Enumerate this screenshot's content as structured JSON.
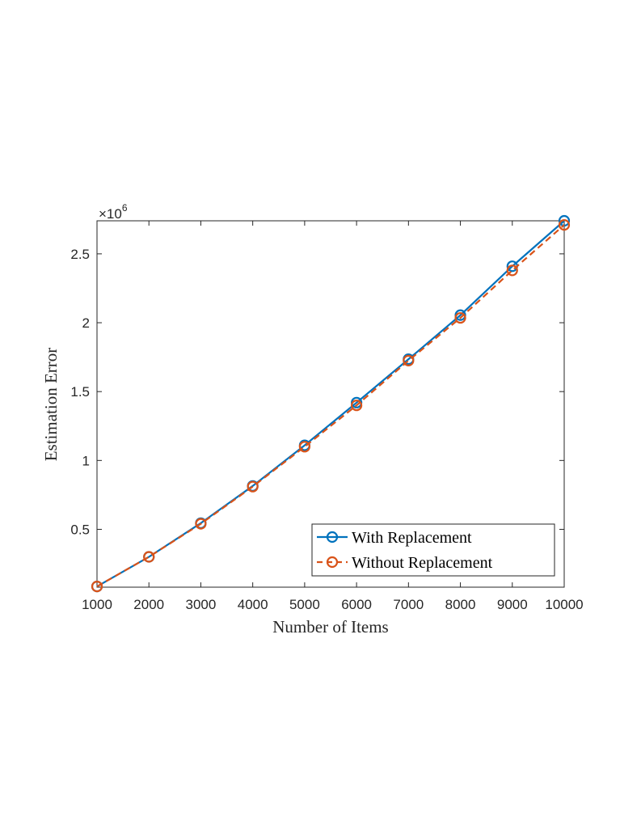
{
  "chart_data": {
    "type": "line",
    "xlabel": "Number of Items",
    "ylabel": "Estimation Error",
    "y_multiplier_label": "×10",
    "y_multiplier_exponent": "6",
    "x": [
      1000,
      2000,
      3000,
      4000,
      5000,
      6000,
      7000,
      8000,
      9000,
      10000
    ],
    "xlim": [
      1000,
      10000
    ],
    "ylim": [
      0.08,
      2.74
    ],
    "x_ticks": [
      1000,
      2000,
      3000,
      4000,
      5000,
      6000,
      7000,
      8000,
      9000,
      10000
    ],
    "x_tick_labels": [
      "1000",
      "2000",
      "3000",
      "4000",
      "5000",
      "6000",
      "7000",
      "8000",
      "9000",
      "10000"
    ],
    "y_ticks": [
      0.5,
      1,
      1.5,
      2,
      2.5
    ],
    "y_tick_labels": [
      "0.5",
      "1",
      "1.5",
      "2",
      "2.5"
    ],
    "grid": false,
    "legend_position": "bottom-right",
    "series": [
      {
        "name": "With Replacement",
        "color": "#0072BD",
        "line_style": "solid",
        "marker": "circle",
        "values": [
          0.085,
          0.3,
          0.545,
          0.815,
          1.11,
          1.42,
          1.735,
          2.055,
          2.41,
          2.74
        ]
      },
      {
        "name": "Without Replacement",
        "color": "#D95319",
        "line_style": "dashed",
        "marker": "circle",
        "values": [
          0.085,
          0.3,
          0.54,
          0.81,
          1.1,
          1.4,
          1.725,
          2.035,
          2.38,
          2.71
        ]
      }
    ]
  }
}
